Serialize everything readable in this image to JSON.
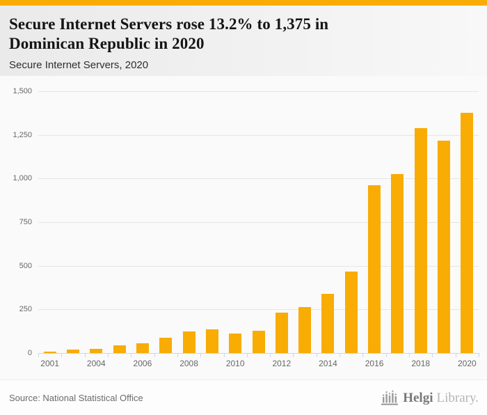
{
  "accent": {
    "color": "#F8AC04"
  },
  "header": {
    "title_lines": [
      "Secure Internet Servers rose 13.2% to 1,375 in",
      "Dominican Republic in 2020"
    ],
    "subtitle": "Secure Internet Servers, 2020"
  },
  "chart_data": {
    "type": "bar",
    "title": "Secure Internet Servers, 2020",
    "series_name": "Secure Internet Servers",
    "categories": [
      "2001",
      "2003",
      "2004",
      "2005",
      "2006",
      "2007",
      "2008",
      "2009",
      "2010",
      "2011",
      "2012",
      "2013",
      "2014",
      "2015",
      "2016",
      "2017",
      "2018",
      "2019",
      "2020"
    ],
    "values": [
      6,
      18,
      25,
      45,
      56,
      89,
      122,
      136,
      110,
      127,
      232,
      263,
      340,
      467,
      962,
      1027,
      1287,
      1215,
      1375
    ],
    "visible_x_labels": [
      "2001",
      "2004",
      "2006",
      "2008",
      "2010",
      "2012",
      "2014",
      "2016",
      "2018",
      "2020"
    ],
    "label_step": 2,
    "xlabel": "",
    "ylabel": "",
    "ylim": [
      0,
      1500
    ],
    "yticks": [
      0,
      250,
      500,
      750,
      1000,
      1250,
      1500
    ],
    "grid": "horizontal",
    "legend": "none",
    "bar_color": "#F8AC04",
    "grid_color": "#e6e6e6",
    "axis_color": "#ccd6eb",
    "tick_label_color": "#666666"
  },
  "footer": {
    "source": "Source: National Statistical Office",
    "logo_text_primary": "Helgi",
    "logo_text_secondary": "Library."
  }
}
